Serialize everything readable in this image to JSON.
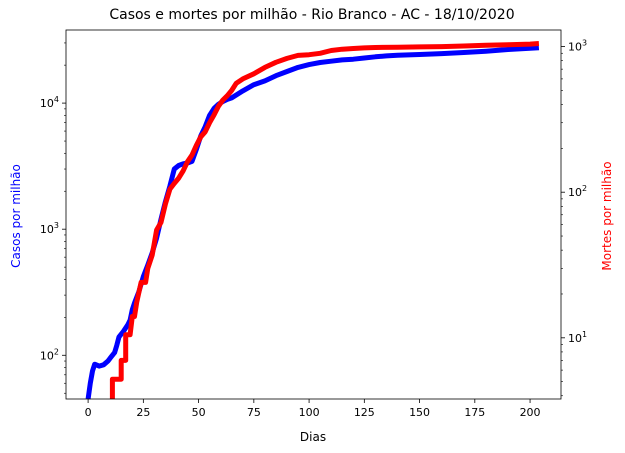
{
  "chart_data": {
    "type": "line",
    "title": "Casos e mortes por milhão - Rio Branco - AC - 18/10/2020",
    "xlabel": "Dias",
    "ylabel_left": "Casos por milhão",
    "ylabel_right": "Mortes por milhão",
    "xlim": [
      -10,
      214
    ],
    "x_ticks": [
      0,
      25,
      50,
      75,
      100,
      125,
      150,
      175,
      200
    ],
    "ylim_left": [
      45,
      38000
    ],
    "y_scale_left": "log",
    "y_ticks_left": [
      {
        "value": 100,
        "base": "10",
        "exp": "2"
      },
      {
        "value": 1000,
        "base": "10",
        "exp": "3"
      },
      {
        "value": 10000,
        "base": "10",
        "exp": "4"
      }
    ],
    "ylim_right": [
      3.8,
      1300
    ],
    "y_scale_right": "log",
    "y_ticks_right": [
      {
        "value": 10,
        "base": "10",
        "exp": "1"
      },
      {
        "value": 100,
        "base": "10",
        "exp": "2"
      },
      {
        "value": 1000,
        "base": "10",
        "exp": "3"
      }
    ],
    "grid": false,
    "series": [
      {
        "name": "Casos por milhão",
        "axis": "left",
        "color": "#0000ff",
        "x": [
          0,
          1,
          2,
          3,
          5,
          7,
          9,
          10,
          12,
          13,
          14,
          16,
          18,
          19,
          20,
          21,
          23,
          25,
          27,
          29,
          31,
          33,
          35,
          37,
          39,
          41,
          43,
          45,
          47,
          49,
          51,
          53,
          55,
          57,
          59,
          61,
          63,
          65,
          70,
          75,
          80,
          85,
          90,
          95,
          100,
          105,
          110,
          115,
          120,
          125,
          130,
          135,
          140,
          150,
          160,
          170,
          180,
          190,
          200,
          204
        ],
        "y": [
          45,
          60,
          75,
          85,
          82,
          84,
          90,
          95,
          105,
          120,
          140,
          155,
          175,
          190,
          230,
          260,
          320,
          420,
          520,
          650,
          850,
          1200,
          1650,
          2200,
          3000,
          3200,
          3300,
          3350,
          3450,
          4300,
          5500,
          6500,
          8000,
          9100,
          9800,
          10300,
          10700,
          11000,
          12500,
          14000,
          15000,
          16500,
          17800,
          19200,
          20200,
          21000,
          21500,
          22000,
          22300,
          22800,
          23300,
          23700,
          24000,
          24300,
          24700,
          25200,
          25800,
          26600,
          27200,
          27500
        ]
      },
      {
        "name": "Mortes por milhão",
        "axis": "right",
        "color": "#ff0000",
        "x": [
          11,
          11,
          14,
          14,
          15,
          15,
          17,
          17,
          18,
          19,
          20,
          21,
          22,
          22,
          24,
          26,
          27,
          29,
          30,
          31,
          33,
          35,
          37,
          39,
          41,
          43,
          45,
          47,
          49,
          51,
          53,
          55,
          57,
          59,
          61,
          63,
          65,
          67,
          70,
          75,
          80,
          85,
          90,
          95,
          100,
          105,
          110,
          115,
          120,
          125,
          130,
          140,
          150,
          160,
          170,
          180,
          190,
          200,
          204
        ],
        "y": [
          3.8,
          5.2,
          5.2,
          5.2,
          5.2,
          7,
          7,
          10.5,
          10.5,
          10.5,
          14,
          14,
          17.5,
          17.5,
          24,
          24,
          30,
          37,
          45,
          55,
          62,
          83,
          105,
          115,
          125,
          140,
          162,
          180,
          210,
          240,
          260,
          300,
          340,
          390,
          430,
          460,
          500,
          560,
          600,
          650,
          720,
          780,
          830,
          870,
          880,
          900,
          940,
          960,
          970,
          980,
          985,
          990,
          995,
          1000,
          1010,
          1020,
          1030,
          1040,
          1050
        ]
      }
    ]
  }
}
